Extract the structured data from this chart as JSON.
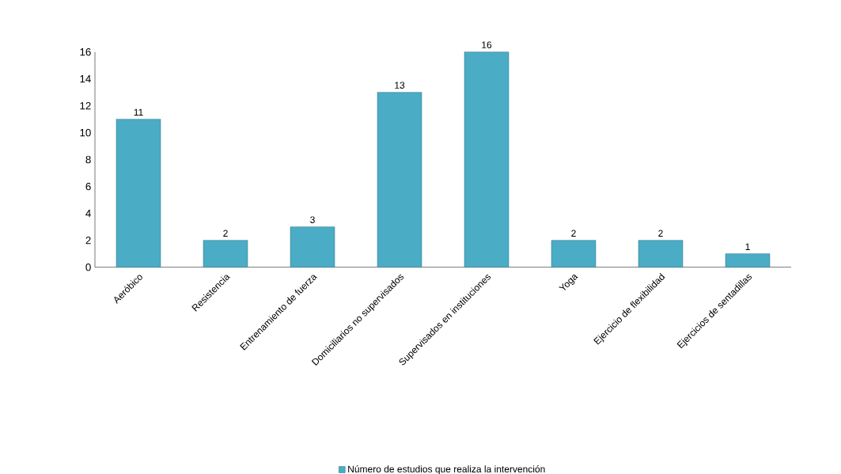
{
  "chart_data": {
    "type": "bar",
    "categories": [
      "Aeróbico",
      "Resistencia",
      "Entrenamiento de fuerza",
      "Domiciliarios no supervisados",
      "Supervisados en instituciones",
      "Yoga",
      "Ejercicio de flexibilidad",
      "Ejercicios de sentadillas"
    ],
    "series": [
      {
        "name": "Número de estudios que realiza la intervención",
        "color": "#4bacc6",
        "values": [
          11,
          2,
          3,
          13,
          16,
          2,
          2,
          1
        ]
      }
    ],
    "ylim": [
      0,
      16
    ],
    "yticks": [
      0,
      2,
      4,
      6,
      8,
      10,
      12,
      14,
      16
    ],
    "data_labels": true,
    "legend": "bottom",
    "grid": false
  }
}
